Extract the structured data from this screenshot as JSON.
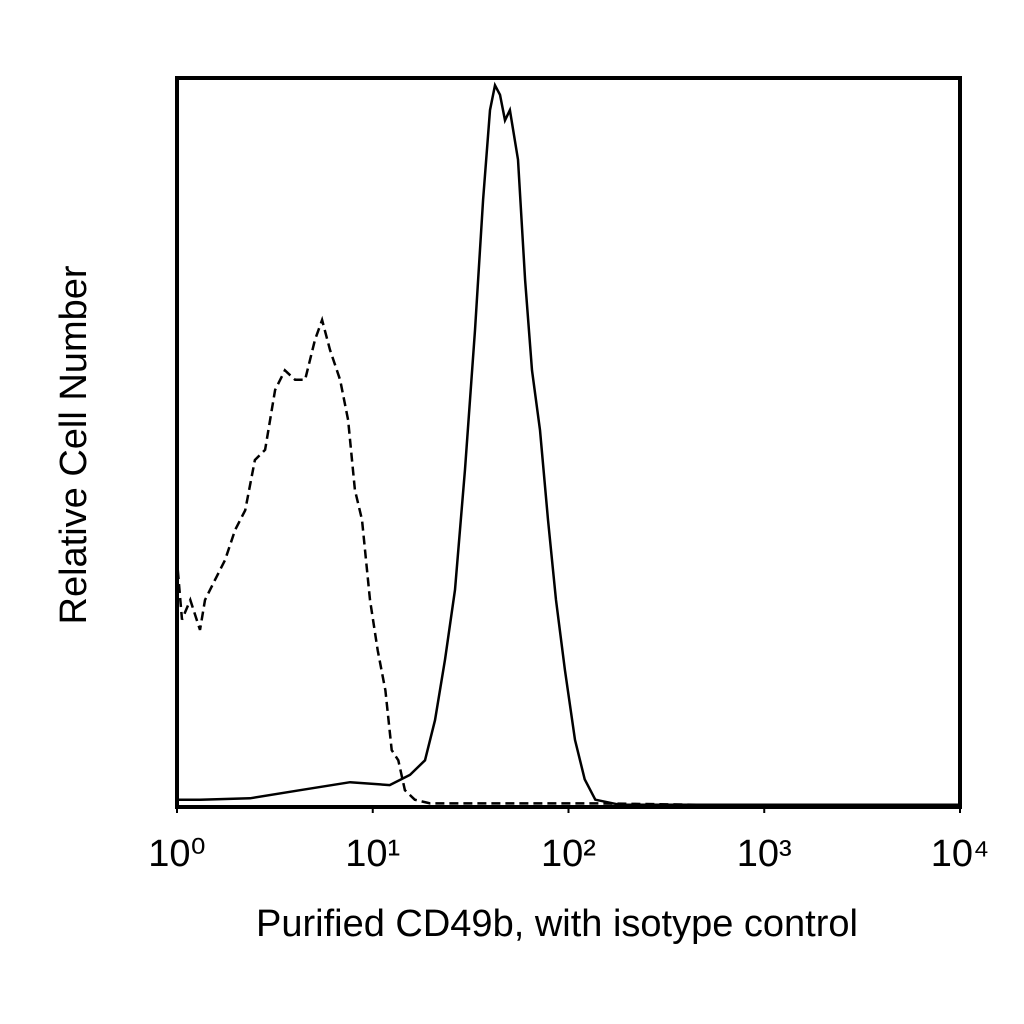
{
  "chart_data": {
    "type": "line",
    "xlabel": "Purified CD49b, with isotype control",
    "ylabel": "Relative Cell Number",
    "xscale": "log",
    "xlim": [
      1,
      10000
    ],
    "xticks": [
      {
        "value": 1,
        "label": "10⁰"
      },
      {
        "value": 10,
        "label": "10¹"
      },
      {
        "value": 100,
        "label": "10²"
      },
      {
        "value": 1000,
        "label": "10³"
      },
      {
        "value": 10000,
        "label": "10⁴"
      }
    ],
    "ylim": [
      0,
      100
    ],
    "series": [
      {
        "name": "isotype control",
        "color": "#000000",
        "line_style": "dashed",
        "x": [
          1.01,
          1.06,
          1.17,
          1.31,
          1.39,
          1.56,
          1.76,
          1.98,
          2.23,
          2.5,
          2.82,
          3.17,
          3.56,
          4.01,
          4.51,
          5.07,
          5.51,
          6.05,
          6.81,
          7.48,
          8.11,
          8.81,
          9.68,
          10.6,
          11.6,
          12.5,
          13.5,
          14.6,
          16.4,
          19.6,
          44.7,
          145,
          470,
          1520,
          9900
        ],
        "values": [
          32.5,
          25.7,
          28.4,
          24.3,
          28.4,
          31.1,
          33.9,
          38.0,
          40.7,
          47.6,
          49.0,
          57.2,
          59.9,
          58.6,
          58.6,
          64.1,
          66.8,
          62.7,
          58.6,
          53.1,
          43.5,
          39.4,
          28.4,
          21.5,
          16.0,
          7.8,
          6.4,
          2.3,
          1.0,
          0.5,
          0.5,
          0.5,
          0.3,
          0.3,
          0.3
        ]
      },
      {
        "name": "Purified CD49b",
        "color": "#000000",
        "line_style": "solid",
        "x": [
          1.01,
          1.31,
          2.36,
          4.25,
          7.66,
          12.2,
          15.5,
          18.5,
          20.8,
          23.4,
          26.3,
          29.6,
          33.3,
          36.6,
          39.7,
          42.1,
          44.7,
          47.4,
          50.2,
          55.2,
          60.0,
          65.1,
          71.5,
          78.6,
          86.3,
          95.9,
          108,
          121,
          137,
          183,
          470,
          1520,
          9900
        ],
        "values": [
          1.0,
          1.0,
          1.2,
          2.3,
          3.4,
          3.0,
          4.4,
          6.4,
          11.9,
          20.2,
          29.8,
          46.3,
          65.4,
          83.3,
          95.6,
          99.0,
          97.7,
          94.2,
          95.6,
          88.8,
          72.3,
          59.9,
          51.7,
          39.4,
          28.4,
          18.8,
          9.2,
          3.8,
          1.0,
          0.3,
          0.3,
          0.3,
          0.3
        ]
      }
    ]
  }
}
